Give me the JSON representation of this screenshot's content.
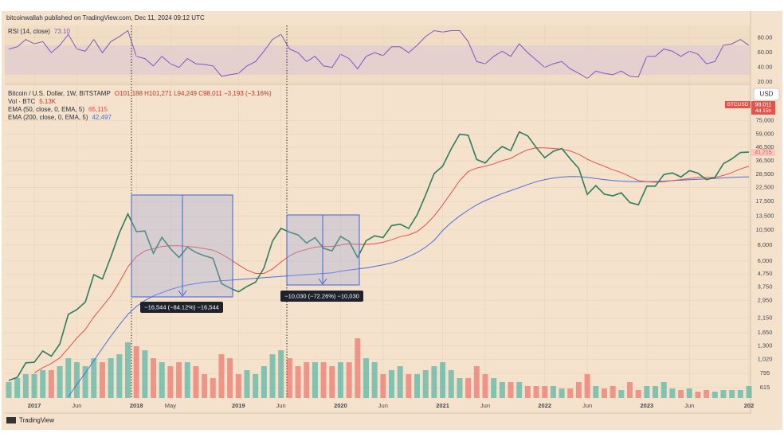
{
  "header": "bitcoinwallah published on TradingView.com, Dec 11, 2024 09:12 UTC",
  "footer": "TradingView",
  "chart_data": [
    {
      "type": "line",
      "title": "RSI (14, close)",
      "last_label": "73.10",
      "x": [
        "2016-10",
        "2016-11",
        "2016-12",
        "2017-01",
        "2017-02",
        "2017-03",
        "2017-04",
        "2017-05",
        "2017-06",
        "2017-07",
        "2017-08",
        "2017-09",
        "2017-10",
        "2017-11",
        "2017-12",
        "2018-01",
        "2018-02",
        "2018-03",
        "2018-04",
        "2018-05",
        "2018-06",
        "2018-07",
        "2018-08",
        "2018-09",
        "2018-10",
        "2018-11",
        "2018-12",
        "2019-01",
        "2019-02",
        "2019-03",
        "2019-04",
        "2019-05",
        "2019-06",
        "2019-07",
        "2019-08",
        "2019-09",
        "2019-10",
        "2019-11",
        "2019-12",
        "2020-01",
        "2020-02",
        "2020-03",
        "2020-04",
        "2020-05",
        "2020-06",
        "2020-07",
        "2020-08",
        "2020-09",
        "2020-10",
        "2020-11",
        "2020-12",
        "2021-01",
        "2021-02",
        "2021-03",
        "2021-04",
        "2021-05",
        "2021-06",
        "2021-07",
        "2021-08",
        "2021-09",
        "2021-10",
        "2021-11",
        "2021-12",
        "2022-01",
        "2022-02",
        "2022-03",
        "2022-04",
        "2022-05",
        "2022-06",
        "2022-07",
        "2022-08",
        "2022-09",
        "2022-10",
        "2022-11",
        "2022-12",
        "2023-01",
        "2023-02",
        "2023-03",
        "2023-04",
        "2023-05",
        "2023-06",
        "2023-07",
        "2023-08",
        "2023-09",
        "2023-10",
        "2023-11",
        "2023-12",
        "2024-01"
      ],
      "xlim": [
        "2016-10",
        "2024-01"
      ],
      "series": [
        {
          "color": "#7e57c2",
          "values": [
            65,
            68,
            78,
            72,
            75,
            60,
            70,
            85,
            65,
            62,
            78,
            60,
            75,
            82,
            90,
            55,
            52,
            42,
            55,
            45,
            40,
            52,
            45,
            44,
            42,
            28,
            30,
            32,
            42,
            48,
            62,
            78,
            85,
            65,
            60,
            48,
            55,
            42,
            40,
            58,
            52,
            38,
            55,
            60,
            56,
            68,
            68,
            60,
            70,
            82,
            90,
            88,
            90,
            90,
            75,
            48,
            45,
            55,
            62,
            55,
            72,
            60,
            50,
            40,
            45,
            48,
            38,
            32,
            25,
            35,
            32,
            30,
            35,
            28,
            27,
            55,
            55,
            65,
            62,
            55,
            62,
            58,
            45,
            48,
            70,
            72,
            78,
            70
          ]
        }
      ],
      "ylim": [
        18,
        97
      ],
      "yticks": [
        {
          "value": 80,
          "label": "80.00"
        },
        {
          "value": 60,
          "label": "60.00"
        },
        {
          "value": 40,
          "label": "40.00"
        },
        {
          "value": 20,
          "label": "20.00"
        }
      ]
    },
    {
      "type": "line",
      "title": "Bitcoin / U.S. Dollar, 1W, BITSTAMP",
      "subtitle": "O101,188 H101,271 L94,249 C98,011 −3,193 (−3.16%)",
      "currency": "USD",
      "symbol_tag": "BTCUSD",
      "last_price_label": "98,011",
      "countdown": "4d 15h",
      "ema_tag": "41,715",
      "log_scale": true,
      "up_color": "#26a69a",
      "down_color": "#ef5350",
      "x": [
        "2016-10",
        "2016-11",
        "2016-12",
        "2017-01",
        "2017-02",
        "2017-03",
        "2017-04",
        "2017-05",
        "2017-06",
        "2017-07",
        "2017-08",
        "2017-09",
        "2017-10",
        "2017-11",
        "2017-12",
        "2018-01",
        "2018-02",
        "2018-03",
        "2018-04",
        "2018-05",
        "2018-06",
        "2018-07",
        "2018-08",
        "2018-09",
        "2018-10",
        "2018-11",
        "2018-12",
        "2019-01",
        "2019-02",
        "2019-03",
        "2019-04",
        "2019-05",
        "2019-06",
        "2019-07",
        "2019-08",
        "2019-09",
        "2019-10",
        "2019-11",
        "2019-12",
        "2020-01",
        "2020-02",
        "2020-03",
        "2020-04",
        "2020-05",
        "2020-06",
        "2020-07",
        "2020-08",
        "2020-09",
        "2020-10",
        "2020-11",
        "2020-12",
        "2021-01",
        "2021-02",
        "2021-03",
        "2021-04",
        "2021-05",
        "2021-06",
        "2021-07",
        "2021-08",
        "2021-09",
        "2021-10",
        "2021-11",
        "2021-12",
        "2022-01",
        "2022-02",
        "2022-03",
        "2022-04",
        "2022-05",
        "2022-06",
        "2022-07",
        "2022-08",
        "2022-09",
        "2022-10",
        "2022-11",
        "2022-12",
        "2023-01",
        "2023-02",
        "2023-03",
        "2023-04",
        "2023-05",
        "2023-06",
        "2023-07",
        "2023-08",
        "2023-09",
        "2023-10",
        "2023-11",
        "2023-12",
        "2024-01"
      ],
      "xlim": [
        "2016-10",
        "2024-01"
      ],
      "xticks": [
        {
          "value": "2017-01",
          "label": "2017"
        },
        {
          "value": "2017-06",
          "label": "Jun"
        },
        {
          "value": "2018-01",
          "label": "2018"
        },
        {
          "value": "2018-05",
          "label": "May"
        },
        {
          "value": "2019-01",
          "label": "2019"
        },
        {
          "value": "2019-06",
          "label": "Jun"
        },
        {
          "value": "2020-01",
          "label": "2020"
        },
        {
          "value": "2020-06",
          "label": "Jun"
        },
        {
          "value": "2021-01",
          "label": "2021"
        },
        {
          "value": "2021-06",
          "label": "Jun"
        },
        {
          "value": "2022-01",
          "label": "2022"
        },
        {
          "value": "2022-06",
          "label": "Jun"
        },
        {
          "value": "2023-01",
          "label": "2023"
        },
        {
          "value": "2023-06",
          "label": "Jun"
        },
        {
          "value": "2024-01",
          "label": "202"
        }
      ],
      "ylim": [
        510,
        118000
      ],
      "yticks": [
        {
          "value": 75000,
          "label": "75,000"
        },
        {
          "value": 59000,
          "label": "59,000"
        },
        {
          "value": 46500,
          "label": "46,500"
        },
        {
          "value": 36500,
          "label": "36,500"
        },
        {
          "value": 28500,
          "label": "28,500"
        },
        {
          "value": 22500,
          "label": "22,500"
        },
        {
          "value": 17500,
          "label": "17,500"
        },
        {
          "value": 13500,
          "label": "13,500"
        },
        {
          "value": 10500,
          "label": "10,500"
        },
        {
          "value": 8000,
          "label": "8,000"
        },
        {
          "value": 6000,
          "label": "6,000"
        },
        {
          "value": 4750,
          "label": "4,750"
        },
        {
          "value": 3750,
          "label": "3,750"
        },
        {
          "value": 2950,
          "label": "2,950"
        },
        {
          "value": 2150,
          "label": "2,150"
        },
        {
          "value": 1650,
          "label": "1,650"
        },
        {
          "value": 1300,
          "label": "1,300"
        },
        {
          "value": 1020,
          "label": "1,020"
        },
        {
          "value": 795,
          "label": "795"
        },
        {
          "value": 615,
          "label": "615"
        }
      ],
      "y2lim": [
        0,
        380
      ],
      "series": [
        {
          "color": "#2e7d5b",
          "values": [
            700,
            740,
            960,
            970,
            1190,
            1080,
            1350,
            2300,
            2500,
            2870,
            4700,
            4340,
            6450,
            9950,
            14000,
            10200,
            10300,
            6900,
            9200,
            7500,
            6400,
            7700,
            7000,
            6600,
            6300,
            4000,
            3700,
            3450,
            3800,
            4100,
            5300,
            8600,
            10800,
            10100,
            9600,
            8300,
            9150,
            7550,
            7200,
            9350,
            8550,
            6400,
            8650,
            9450,
            9150,
            11350,
            11650,
            10780,
            13800,
            19700,
            29000,
            33100,
            45200,
            58800,
            57700,
            37300,
            35000,
            41500,
            47100,
            43800,
            61300,
            57000,
            46300,
            38500,
            43200,
            45500,
            37700,
            31800,
            19900,
            23300,
            20000,
            19400,
            20500,
            17200,
            16500,
            23100,
            23100,
            28500,
            29300,
            27200,
            30500,
            29200,
            26000,
            27000,
            34600,
            37700,
            42300,
            42600
          ]
        },
        {
          "name": "Vol · BTC",
          "last_label": "5.13K",
          "axis": "y2",
          "values": [
            20,
            25,
            30,
            30,
            35,
            35,
            40,
            50,
            45,
            40,
            50,
            45,
            50,
            55,
            70,
            65,
            60,
            50,
            45,
            40,
            45,
            45,
            40,
            30,
            25,
            55,
            50,
            30,
            35,
            30,
            40,
            55,
            60,
            50,
            40,
            45,
            45,
            45,
            40,
            45,
            45,
            75,
            50,
            45,
            30,
            35,
            40,
            30,
            30,
            35,
            40,
            45,
            35,
            25,
            25,
            40,
            30,
            25,
            20,
            20,
            20,
            15,
            15,
            15,
            15,
            12,
            12,
            20,
            30,
            15,
            12,
            15,
            10,
            20,
            10,
            15,
            15,
            20,
            12,
            10,
            12,
            8,
            10,
            8,
            10,
            10,
            10,
            15
          ]
        },
        {
          "name": "EMA (50, close, 0, EMA, 5)",
          "last_label": "65,115",
          "color": "#e5534b",
          "values": [
            null,
            null,
            null,
            800,
            880,
            950,
            1050,
            1250,
            1500,
            1750,
            2200,
            2650,
            3200,
            4100,
            5400,
            6500,
            7200,
            7500,
            7800,
            7900,
            7900,
            7800,
            7700,
            7500,
            7300,
            6800,
            6200,
            5600,
            5100,
            4800,
            4800,
            5200,
            5900,
            6600,
            7100,
            7400,
            7700,
            7800,
            7800,
            8000,
            8200,
            8100,
            8100,
            8200,
            8400,
            8800,
            9300,
            9600,
            10200,
            11500,
            13500,
            16500,
            20500,
            25500,
            30000,
            32000,
            33000,
            34500,
            36500,
            38000,
            41500,
            44500,
            46000,
            46000,
            45500,
            45000,
            43500,
            41000,
            37500,
            35000,
            33000,
            31000,
            29500,
            27500,
            25500,
            25000,
            24800,
            25000,
            25500,
            26000,
            26500,
            27000,
            27000,
            27000,
            28000,
            29500,
            31500,
            33000
          ]
        },
        {
          "name": "EMA (200, close, 0, EMA, 5)",
          "last_label": "42,497",
          "color": "#4a6fe0",
          "values": [
            null,
            null,
            null,
            null,
            null,
            null,
            null,
            520,
            650,
            800,
            1000,
            1250,
            1550,
            1900,
            2300,
            2650,
            2950,
            3200,
            3400,
            3600,
            3750,
            3900,
            4000,
            4100,
            4150,
            4200,
            4250,
            4300,
            4350,
            4400,
            4450,
            4500,
            4550,
            4600,
            4650,
            4700,
            4750,
            4800,
            4850,
            5000,
            5100,
            5200,
            5300,
            5450,
            5600,
            5800,
            6100,
            6500,
            7000,
            7700,
            8700,
            10400,
            12000,
            13500,
            15000,
            16500,
            17800,
            19000,
            20200,
            21300,
            22500,
            23800,
            25000,
            26000,
            26700,
            27200,
            27500,
            27400,
            27000,
            26500,
            26000,
            25600,
            25300,
            25100,
            25000,
            25000,
            25100,
            25300,
            25500,
            25700,
            25900,
            26100,
            26300,
            26500,
            26800,
            27000,
            27200,
            27300
          ]
        }
      ],
      "annotations": [
        "−16,544 (−84.12%) −16,544",
        "−10,030 (−72.26%) −10,030"
      ]
    }
  ]
}
